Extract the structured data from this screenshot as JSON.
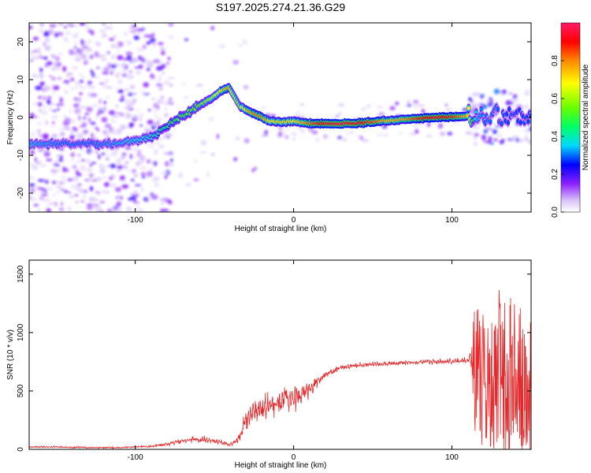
{
  "title": "S197.2025.274.21.36.G29",
  "colors": {
    "snr_line": "#e8282a",
    "axis": "#000000",
    "background": "#ffffff"
  },
  "chart_data": [
    {
      "type": "heatmap",
      "name": "spectrogram",
      "xlabel": "Height of straight line (km)",
      "ylabel": "Frequency (Hz)",
      "xlim": [
        -167,
        150
      ],
      "ylim": [
        -25,
        25
      ],
      "xticks": [
        -100,
        0,
        100
      ],
      "xtick_labels": [
        "-100",
        "0",
        "100"
      ],
      "yticks": [
        -20,
        -10,
        0,
        10,
        20
      ],
      "ytick_labels": [
        "-20",
        "-10",
        "0",
        "10",
        "20"
      ],
      "ridge": {
        "x": [
          -167,
          -155,
          -145,
          -135,
          -125,
          -115,
          -105,
          -98,
          -90,
          -82,
          -75,
          -68,
          -60,
          -52,
          -46,
          -41,
          -38,
          -34,
          -30,
          -25,
          -20,
          -15,
          -10,
          -5,
          0,
          5,
          10,
          20,
          30,
          40,
          50,
          60,
          70,
          80,
          90,
          100,
          110,
          115,
          120,
          128,
          135,
          142,
          150
        ],
        "freq": [
          -7,
          -7,
          -7,
          -7,
          -7,
          -7,
          -6.5,
          -6,
          -5,
          -3,
          -1,
          1,
          3,
          5,
          7,
          8,
          6,
          3,
          2,
          1,
          0,
          -1,
          -1.2,
          -1.2,
          -1,
          -1.3,
          -1.6,
          -1.6,
          -1.6,
          -1.5,
          -1.2,
          -0.8,
          -0.5,
          -0.2,
          0,
          0.2,
          0.3,
          0.5,
          0,
          1,
          0.5,
          0.3,
          0.2
        ],
        "amplitude": [
          0.35,
          0.32,
          0.3,
          0.3,
          0.3,
          0.32,
          0.35,
          0.35,
          0.38,
          0.45,
          0.5,
          0.52,
          0.55,
          0.62,
          0.7,
          0.78,
          0.62,
          0.6,
          0.72,
          0.8,
          0.8,
          0.7,
          0.72,
          0.72,
          0.7,
          0.75,
          0.82,
          0.92,
          0.95,
          0.92,
          0.85,
          0.75,
          0.78,
          0.88,
          0.92,
          0.88,
          0.75,
          0.35,
          0.3,
          0.3,
          0.28,
          0.28,
          0.28
        ]
      },
      "colorbar": {
        "label": "Normalized spectral amplitude",
        "range": [
          0,
          1
        ],
        "ticks": [
          0,
          0.2,
          0.4,
          0.6,
          0.8
        ],
        "tick_labels": [
          "0.0",
          "0.2",
          "0.4",
          "0.6",
          "0.8"
        ],
        "stops": [
          {
            "v": 0.0,
            "color": "#ffffff"
          },
          {
            "v": 0.06,
            "color": "#d9c5f7"
          },
          {
            "v": 0.15,
            "color": "#8c20ff"
          },
          {
            "v": 0.25,
            "color": "#0000ff"
          },
          {
            "v": 0.35,
            "color": "#00d9ff"
          },
          {
            "v": 0.45,
            "color": "#00ff66"
          },
          {
            "v": 0.55,
            "color": "#66ff00"
          },
          {
            "v": 0.68,
            "color": "#ffff00"
          },
          {
            "v": 0.8,
            "color": "#ff8800"
          },
          {
            "v": 0.9,
            "color": "#ff0000"
          },
          {
            "v": 1.0,
            "color": "#ff1a66"
          }
        ]
      }
    },
    {
      "type": "line",
      "name": "snr",
      "xlabel": "Height of straight line (km)",
      "ylabel": "SNR (10 * v/v)",
      "xlim": [
        -167,
        150
      ],
      "ylim": [
        0,
        1620
      ],
      "xticks": [
        -100,
        0,
        100
      ],
      "xtick_labels": [
        "-100",
        "0",
        "100"
      ],
      "yticks": [
        0,
        500,
        1000,
        1500
      ],
      "ytick_labels": [
        "0",
        "500",
        "1000",
        "1500"
      ],
      "envelope": {
        "x": [
          -167,
          -150,
          -130,
          -110,
          -90,
          -80,
          -70,
          -60,
          -50,
          -40,
          -35,
          -30,
          -25,
          -20,
          -15,
          -10,
          -5,
          0,
          5,
          10,
          15,
          20,
          30,
          40,
          50,
          60,
          70,
          80,
          90,
          100,
          105,
          110,
          112,
          115,
          120,
          130,
          140,
          150
        ],
        "mean": [
          20,
          20,
          15,
          15,
          25,
          45,
          70,
          90,
          70,
          40,
          80,
          250,
          330,
          350,
          380,
          390,
          420,
          440,
          470,
          520,
          580,
          640,
          700,
          720,
          730,
          735,
          740,
          745,
          750,
          755,
          760,
          760,
          780,
          700,
          600,
          650,
          600,
          550
        ],
        "noise": [
          12,
          12,
          10,
          10,
          15,
          25,
          30,
          40,
          35,
          25,
          40,
          120,
          150,
          150,
          160,
          150,
          160,
          150,
          130,
          110,
          80,
          40,
          30,
          30,
          30,
          30,
          30,
          30,
          30,
          30,
          30,
          40,
          80,
          500,
          500,
          600,
          550,
          450
        ]
      }
    }
  ]
}
